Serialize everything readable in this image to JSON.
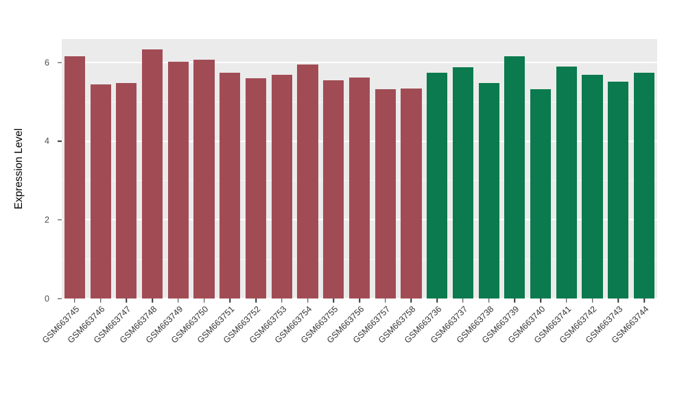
{
  "figure": {
    "background": "#FFFFFF",
    "panel_background": "#EBEBEB",
    "grid_color": "#FFFFFF",
    "axis_text_color": "#4D4D4D",
    "axis_title_color": "#000000",
    "tick_color": "#333333"
  },
  "chart_data": {
    "type": "bar",
    "title": "",
    "xlabel": "",
    "ylabel": "Expression Level",
    "ylim": [
      0,
      6.6
    ],
    "yticks": [
      0,
      2,
      4,
      6
    ],
    "yticks_minor": [
      1,
      3,
      5
    ],
    "grid": true,
    "legend": "none",
    "bar_width_fraction": 0.8,
    "group_colors": {
      "left_group": "#A14C55",
      "right_group": "#0B7A4E"
    },
    "categories": [
      "GSM663745",
      "GSM663746",
      "GSM663747",
      "GSM663748",
      "GSM663749",
      "GSM663750",
      "GSM663751",
      "GSM663752",
      "GSM663753",
      "GSM663754",
      "GSM663755",
      "GSM663756",
      "GSM663757",
      "GSM663758",
      "GSM663736",
      "GSM663737",
      "GSM663738",
      "GSM663739",
      "GSM663740",
      "GSM663741",
      "GSM663742",
      "GSM663743",
      "GSM663744"
    ],
    "values": [
      6.16,
      5.44,
      5.49,
      6.33,
      6.02,
      6.07,
      5.75,
      5.6,
      5.7,
      5.95,
      5.56,
      5.63,
      5.32,
      5.34,
      5.75,
      5.88,
      5.49,
      6.16,
      5.32,
      5.9,
      5.7,
      5.51,
      5.75
    ],
    "bar_colors": [
      "#A14C55",
      "#A14C55",
      "#A14C55",
      "#A14C55",
      "#A14C55",
      "#A14C55",
      "#A14C55",
      "#A14C55",
      "#A14C55",
      "#A14C55",
      "#A14C55",
      "#A14C55",
      "#A14C55",
      "#A14C55",
      "#0B7A4E",
      "#0B7A4E",
      "#0B7A4E",
      "#0B7A4E",
      "#0B7A4E",
      "#0B7A4E",
      "#0B7A4E",
      "#0B7A4E",
      "#0B7A4E"
    ]
  }
}
